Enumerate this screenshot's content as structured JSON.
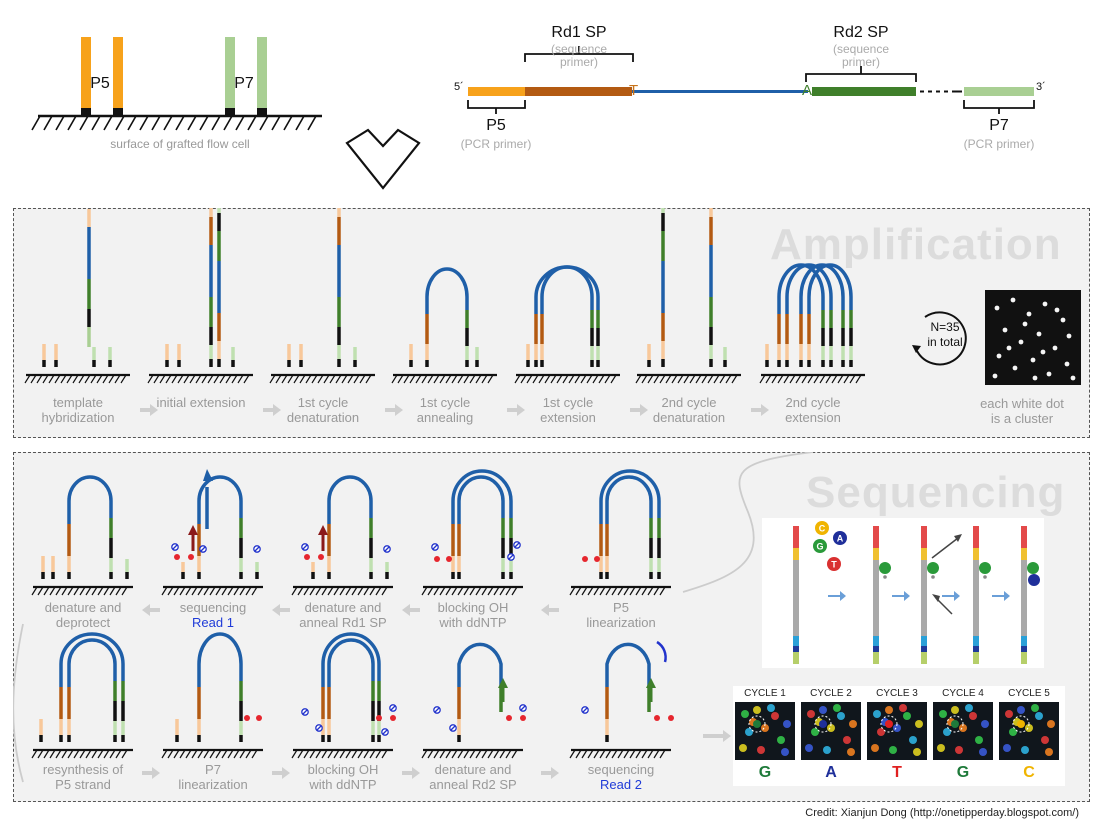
{
  "top": {
    "p5_label": "P5",
    "p7_label": "P7",
    "surface_caption": "surface of grafted flow cell",
    "rd1_title": "Rd1 SP",
    "rd1_sub": "(sequence\nprimer)",
    "rd2_title": "Rd2 SP",
    "rd2_sub": "(sequence\nprimer)",
    "five_prime": "5´",
    "three_prime": "3´",
    "t_letter": "T",
    "a_letter": "A",
    "p5_bottom": "P5",
    "p5_bottom_sub": "(PCR primer)",
    "p7_bottom": "P7",
    "p7_bottom_sub": "(PCR primer)"
  },
  "amplification": {
    "title": "Amplification",
    "steps": [
      "template\nhybridization",
      "initial extension",
      "1st cycle\ndenaturation",
      "1st cycle\nannealing",
      "1st cycle\nextension",
      "2nd cycle\ndenaturation",
      "2nd cycle\nextension"
    ],
    "loop_text": "N=35\nin total",
    "cluster_caption": "each white dot\nis a cluster"
  },
  "sequencing": {
    "title": "Sequencing",
    "row1": [
      {
        "label": "denature and\ndeprotect",
        "highlight": ""
      },
      {
        "label": "sequencing",
        "highlight": "Read 1"
      },
      {
        "label": "denature and\nanneal Rd1 SP",
        "highlight": ""
      },
      {
        "label": "blocking OH\nwith ddNTP",
        "highlight": ""
      },
      {
        "label": "P5\nlinearization",
        "highlight": ""
      }
    ],
    "row2": [
      {
        "label": "resynthesis of\nP5 strand",
        "highlight": ""
      },
      {
        "label": "P7\nlinearization",
        "highlight": ""
      },
      {
        "label": "blocking OH\nwith ddNTP",
        "highlight": ""
      },
      {
        "label": "denature and\nanneal Rd2 SP",
        "highlight": ""
      },
      {
        "label": "sequencing",
        "highlight": "Read 2"
      }
    ],
    "nucleotides": [
      "C",
      "A",
      "G",
      "T"
    ],
    "cycles": [
      {
        "name": "CYCLE 1",
        "base": "G",
        "color": "#1e7a3a"
      },
      {
        "name": "CYCLE 2",
        "base": "A",
        "color": "#1f2f9a"
      },
      {
        "name": "CYCLE 3",
        "base": "T",
        "color": "#e02020"
      },
      {
        "name": "CYCLE 4",
        "base": "G",
        "color": "#1e7a3a"
      },
      {
        "name": "CYCLE 5",
        "base": "C",
        "color": "#f0b400"
      }
    ]
  },
  "colors": {
    "p5": "#f7a21b",
    "rd1": "#b35a12",
    "insert": "#1f5fa8",
    "rd2": "#3f7f2a",
    "p7": "#a9cf93",
    "p5_light": "#f8c89a",
    "p7_light": "#bfe0b0",
    "label_grey": "#999999",
    "read_blue": "#1f3bd8"
  },
  "credit": "Credit: Xianjun Dong  (http://onetipperday.blogspot.com/)"
}
